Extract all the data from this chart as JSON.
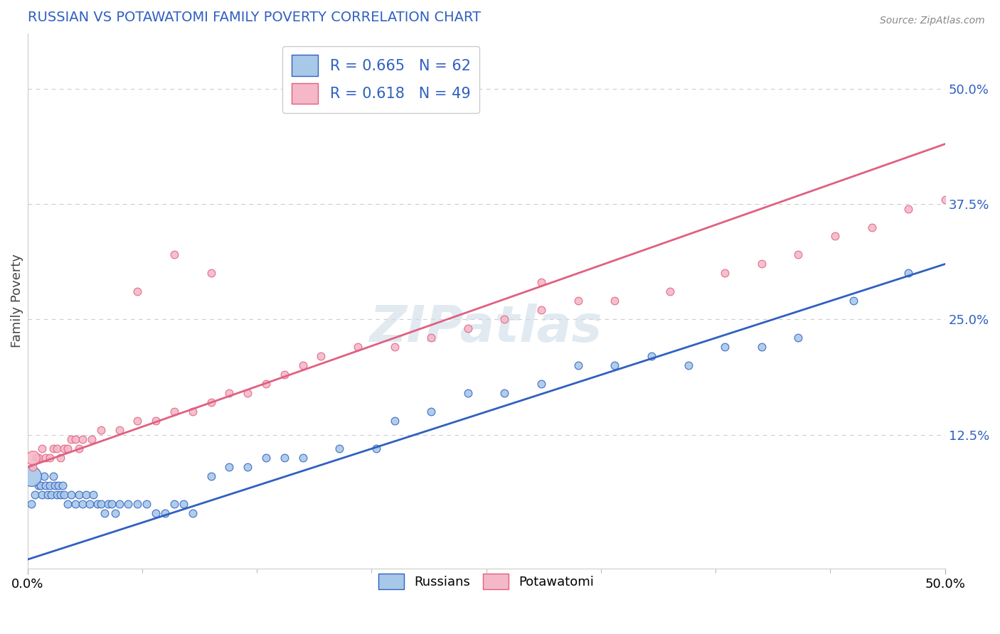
{
  "title": "RUSSIAN VS POTAWATOMI FAMILY POVERTY CORRELATION CHART",
  "source": "Source: ZipAtlas.com",
  "ylabel": "Family Poverty",
  "xlim": [
    0.0,
    0.5
  ],
  "ylim": [
    -0.02,
    0.56
  ],
  "xtick_major": [
    0.0,
    0.5
  ],
  "xtick_major_labels": [
    "0.0%",
    "50.0%"
  ],
  "xtick_minor": [
    0.0625,
    0.125,
    0.1875,
    0.25,
    0.3125,
    0.375,
    0.4375
  ],
  "ytick_vals": [
    0.125,
    0.25,
    0.375,
    0.5
  ],
  "ytick_labels": [
    "12.5%",
    "25.0%",
    "37.5%",
    "50.0%"
  ],
  "watermark": "ZIPatlas",
  "russian_R": 0.665,
  "russian_N": 62,
  "potawatomi_R": 0.618,
  "potawatomi_N": 49,
  "russian_color": "#a8c8e8",
  "potawatomi_color": "#f4b8c8",
  "russian_line_color": "#3060c0",
  "potawatomi_line_color": "#e06080",
  "legend_label_russian": "Russians",
  "legend_label_potawatomi": "Potawatomi",
  "background_color": "#ffffff",
  "grid_color": "#cccccc",
  "title_color": "#3060c0",
  "russian_x": [
    0.002,
    0.004,
    0.006,
    0.007,
    0.008,
    0.009,
    0.01,
    0.011,
    0.012,
    0.013,
    0.014,
    0.015,
    0.016,
    0.017,
    0.018,
    0.019,
    0.02,
    0.022,
    0.024,
    0.026,
    0.028,
    0.03,
    0.032,
    0.034,
    0.036,
    0.038,
    0.04,
    0.042,
    0.044,
    0.046,
    0.048,
    0.05,
    0.055,
    0.06,
    0.065,
    0.07,
    0.075,
    0.08,
    0.085,
    0.09,
    0.1,
    0.11,
    0.12,
    0.13,
    0.14,
    0.15,
    0.17,
    0.19,
    0.2,
    0.22,
    0.24,
    0.26,
    0.28,
    0.3,
    0.32,
    0.34,
    0.36,
    0.38,
    0.4,
    0.42,
    0.45,
    0.48
  ],
  "russian_y": [
    0.05,
    0.06,
    0.07,
    0.07,
    0.06,
    0.08,
    0.07,
    0.06,
    0.07,
    0.06,
    0.08,
    0.07,
    0.06,
    0.07,
    0.06,
    0.07,
    0.06,
    0.05,
    0.06,
    0.05,
    0.06,
    0.05,
    0.06,
    0.05,
    0.06,
    0.05,
    0.05,
    0.04,
    0.05,
    0.05,
    0.04,
    0.05,
    0.05,
    0.05,
    0.05,
    0.04,
    0.04,
    0.05,
    0.05,
    0.04,
    0.08,
    0.09,
    0.09,
    0.1,
    0.1,
    0.1,
    0.11,
    0.11,
    0.14,
    0.15,
    0.17,
    0.17,
    0.18,
    0.2,
    0.2,
    0.21,
    0.2,
    0.22,
    0.22,
    0.23,
    0.27,
    0.3
  ],
  "russian_big_x": [
    0.002
  ],
  "russian_big_y": [
    0.08
  ],
  "russian_big_size": [
    400
  ],
  "potawatomi_x": [
    0.003,
    0.005,
    0.006,
    0.008,
    0.01,
    0.012,
    0.014,
    0.016,
    0.018,
    0.02,
    0.022,
    0.024,
    0.026,
    0.028,
    0.03,
    0.035,
    0.04,
    0.05,
    0.06,
    0.07,
    0.08,
    0.09,
    0.1,
    0.11,
    0.12,
    0.13,
    0.14,
    0.15,
    0.16,
    0.18,
    0.2,
    0.22,
    0.24,
    0.26,
    0.28,
    0.3,
    0.32,
    0.35,
    0.38,
    0.4,
    0.42,
    0.44,
    0.46,
    0.48,
    0.5,
    0.28,
    0.1,
    0.06,
    0.08
  ],
  "potawatomi_y": [
    0.09,
    0.1,
    0.1,
    0.11,
    0.1,
    0.1,
    0.11,
    0.11,
    0.1,
    0.11,
    0.11,
    0.12,
    0.12,
    0.11,
    0.12,
    0.12,
    0.13,
    0.13,
    0.14,
    0.14,
    0.15,
    0.15,
    0.16,
    0.17,
    0.17,
    0.18,
    0.19,
    0.2,
    0.21,
    0.22,
    0.22,
    0.23,
    0.24,
    0.25,
    0.26,
    0.27,
    0.27,
    0.28,
    0.3,
    0.31,
    0.32,
    0.34,
    0.35,
    0.37,
    0.38,
    0.29,
    0.3,
    0.28,
    0.32
  ],
  "potawatomi_big_x": [
    0.003
  ],
  "potawatomi_big_y": [
    0.1
  ],
  "potawatomi_big_size": [
    200
  ],
  "russian_line_x0": 0.0,
  "russian_line_y0": -0.01,
  "russian_line_x1": 0.5,
  "russian_line_y1": 0.31,
  "potawatomi_line_x0": 0.0,
  "potawatomi_line_y0": 0.09,
  "potawatomi_line_x1": 0.5,
  "potawatomi_line_y1": 0.44
}
